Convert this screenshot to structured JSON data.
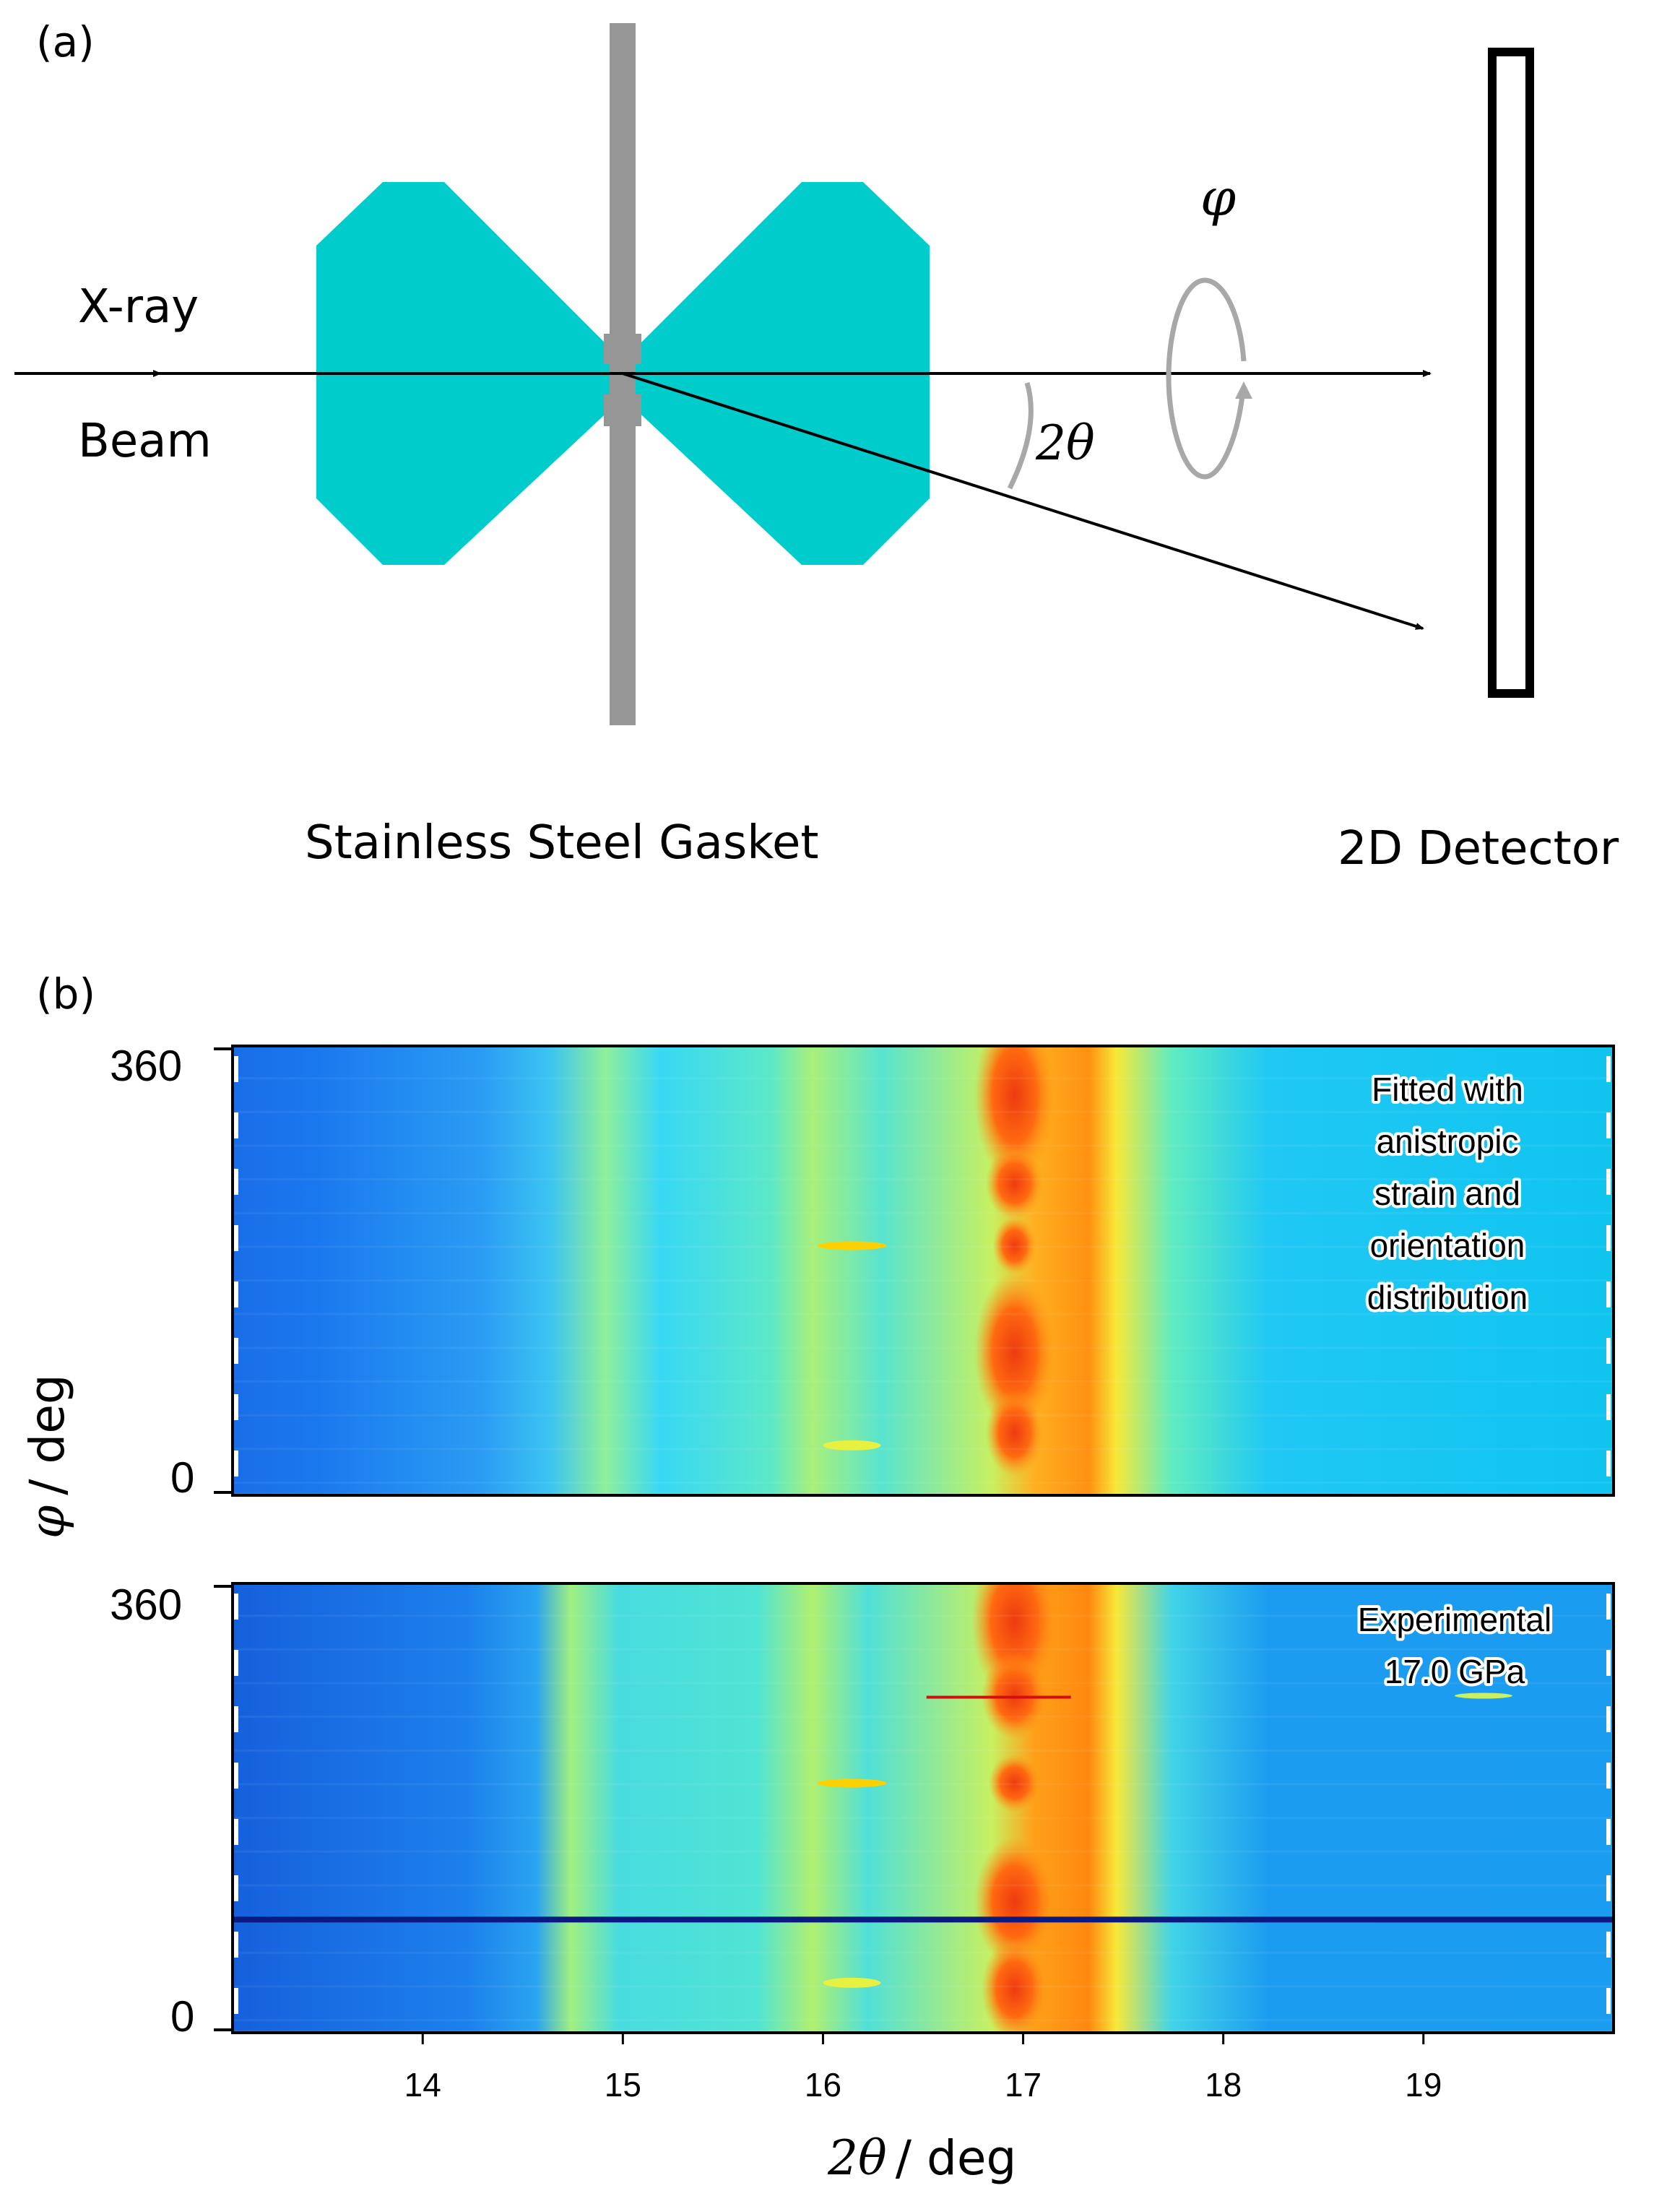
{
  "panel_a": {
    "label": "(a)",
    "xray_label": "X-ray",
    "beam_label": "Beam",
    "two_theta_label": "2θ",
    "phi_label": "φ",
    "gasket_label": "Stainless Steel Gasket",
    "detector_label": "2D Detector",
    "colors": {
      "anvil": "#00cccc",
      "gasket": "#969696",
      "rotation_arrow": "#a8a8a8"
    }
  },
  "panel_b": {
    "label": "(b)",
    "y_axis_label": "/ deg",
    "y_axis_symbol": "φ",
    "x_axis_label": "/ deg",
    "x_axis_symbol": "2θ",
    "x_ticks": [
      "14",
      "15",
      "16",
      "17",
      "18",
      "19"
    ],
    "top_plot": {
      "y_ticks": [
        "360",
        "0"
      ],
      "annotation": [
        "Fitted with",
        "anistropic",
        "strain and",
        "orientation",
        "distribution"
      ]
    },
    "bottom_plot": {
      "y_ticks": [
        "360",
        "0"
      ],
      "annotation": [
        "Experimental",
        "17.0 GPa"
      ]
    }
  },
  "chart_data": {
    "type": "heatmap",
    "x_range": [
      13.05,
      19.95
    ],
    "y_range": [
      0,
      360
    ],
    "xlabel": "2θ / deg",
    "ylabel": "φ / deg",
    "peaks_2theta": [
      14.9,
      15.5,
      16.0,
      16.95,
      17.6
    ],
    "colormap": "jet",
    "panels": [
      "Fitted with anistropic strain and orientation distribution",
      "Experimental 17.0 GPa"
    ]
  }
}
